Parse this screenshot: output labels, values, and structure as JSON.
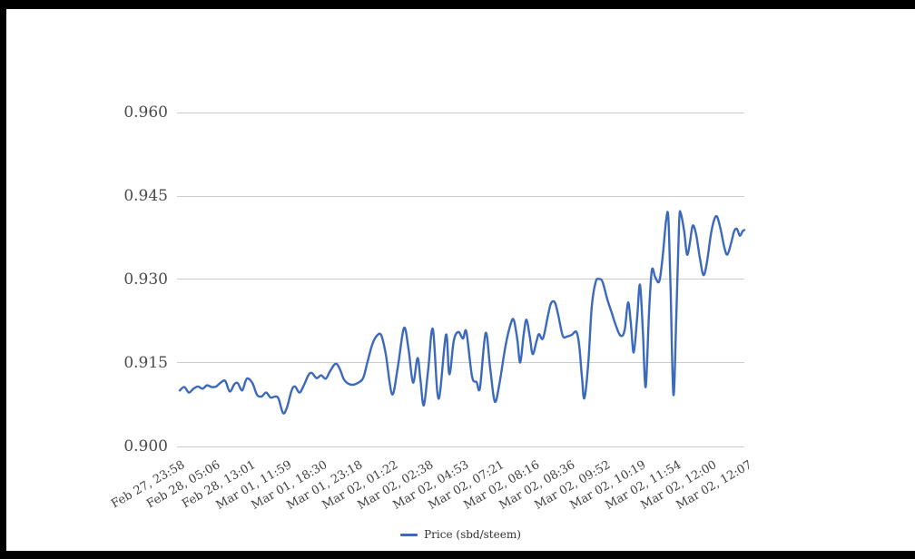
{
  "colors": {
    "frame": "#000000",
    "background": "#ffffff",
    "line": "#3b69bc",
    "grid": "#cccccc",
    "axis_text": "#4a4a4a",
    "legend_text": "#333333"
  },
  "legend": {
    "label": "Price (sbd/steem)"
  },
  "chart_data": {
    "type": "line",
    "title": "",
    "legend_position": "bottom",
    "grid": true,
    "y_axis": {
      "tick_labels": [
        "0.960",
        "0.945",
        "0.930",
        "0.915",
        "0.900"
      ],
      "range": [
        0.9,
        0.96
      ]
    },
    "x_ticks": [
      "Feb 27, 23:58",
      "Feb 28, 05:06",
      "Feb 28, 13:01",
      "Mar 01, 11:59",
      "Mar 01, 18:30",
      "Mar 01, 23:18",
      "Mar 02, 01:22",
      "Mar 02, 02:38",
      "Mar 02, 04:53",
      "Mar 02, 07:21",
      "Mar 02, 08:16",
      "Mar 02, 08:36",
      "Mar 02, 09:52",
      "Mar 02, 10:19",
      "Mar 02, 11:54",
      "Mar 02, 12:00",
      "Mar 02, 12:07"
    ],
    "points_format": "each point is [x_fraction_across_axis, price_sbd_per_steem]",
    "series": [
      {
        "name": "Price (sbd/steem)",
        "color": "#3b69bc",
        "points": [
          [
            0.005,
            0.91
          ],
          [
            0.013,
            0.9106
          ],
          [
            0.021,
            0.9096
          ],
          [
            0.029,
            0.9103
          ],
          [
            0.037,
            0.9107
          ],
          [
            0.045,
            0.9103
          ],
          [
            0.053,
            0.9109
          ],
          [
            0.061,
            0.9106
          ],
          [
            0.069,
            0.9107
          ],
          [
            0.077,
            0.9114
          ],
          [
            0.085,
            0.9117
          ],
          [
            0.093,
            0.9098
          ],
          [
            0.101,
            0.9111
          ],
          [
            0.107,
            0.9113
          ],
          [
            0.115,
            0.91
          ],
          [
            0.123,
            0.9121
          ],
          [
            0.133,
            0.9113
          ],
          [
            0.141,
            0.9092
          ],
          [
            0.149,
            0.9089
          ],
          [
            0.157,
            0.9096
          ],
          [
            0.165,
            0.9087
          ],
          [
            0.173,
            0.9089
          ],
          [
            0.179,
            0.9085
          ],
          [
            0.187,
            0.9059
          ],
          [
            0.194,
            0.907
          ],
          [
            0.202,
            0.91
          ],
          [
            0.208,
            0.9107
          ],
          [
            0.216,
            0.9096
          ],
          [
            0.224,
            0.911
          ],
          [
            0.232,
            0.9128
          ],
          [
            0.238,
            0.9131
          ],
          [
            0.246,
            0.9122
          ],
          [
            0.254,
            0.9127
          ],
          [
            0.262,
            0.9121
          ],
          [
            0.269,
            0.9133
          ],
          [
            0.277,
            0.9146
          ],
          [
            0.282,
            0.9147
          ],
          [
            0.288,
            0.9136
          ],
          [
            0.294,
            0.912
          ],
          [
            0.302,
            0.9112
          ],
          [
            0.31,
            0.911
          ],
          [
            0.318,
            0.9113
          ],
          [
            0.328,
            0.9122
          ],
          [
            0.336,
            0.9152
          ],
          [
            0.344,
            0.9182
          ],
          [
            0.352,
            0.9198
          ],
          [
            0.36,
            0.9199
          ],
          [
            0.368,
            0.9165
          ],
          [
            0.379,
            0.9093
          ],
          [
            0.389,
            0.914
          ],
          [
            0.4,
            0.9212
          ],
          [
            0.408,
            0.9175
          ],
          [
            0.416,
            0.9114
          ],
          [
            0.424,
            0.9158
          ],
          [
            0.429,
            0.912
          ],
          [
            0.435,
            0.9073
          ],
          [
            0.443,
            0.914
          ],
          [
            0.451,
            0.921
          ],
          [
            0.461,
            0.9085
          ],
          [
            0.474,
            0.92
          ],
          [
            0.48,
            0.9129
          ],
          [
            0.488,
            0.919
          ],
          [
            0.496,
            0.9205
          ],
          [
            0.504,
            0.9193
          ],
          [
            0.51,
            0.9205
          ],
          [
            0.52,
            0.9125
          ],
          [
            0.528,
            0.9115
          ],
          [
            0.534,
            0.9105
          ],
          [
            0.544,
            0.9203
          ],
          [
            0.552,
            0.914
          ],
          [
            0.56,
            0.908
          ],
          [
            0.568,
            0.911
          ],
          [
            0.579,
            0.918
          ],
          [
            0.589,
            0.9222
          ],
          [
            0.594,
            0.9225
          ],
          [
            0.6,
            0.919
          ],
          [
            0.605,
            0.915
          ],
          [
            0.611,
            0.92
          ],
          [
            0.616,
            0.9227
          ],
          [
            0.622,
            0.9195
          ],
          [
            0.627,
            0.9165
          ],
          [
            0.634,
            0.919
          ],
          [
            0.638,
            0.9201
          ],
          [
            0.645,
            0.9193
          ],
          [
            0.653,
            0.923
          ],
          [
            0.659,
            0.9256
          ],
          [
            0.666,
            0.9258
          ],
          [
            0.672,
            0.9235
          ],
          [
            0.68,
            0.9198
          ],
          [
            0.688,
            0.9197
          ],
          [
            0.696,
            0.92
          ],
          [
            0.704,
            0.9205
          ],
          [
            0.709,
            0.918
          ],
          [
            0.714,
            0.912
          ],
          [
            0.718,
            0.9086
          ],
          [
            0.725,
            0.915
          ],
          [
            0.731,
            0.925
          ],
          [
            0.738,
            0.9295
          ],
          [
            0.744,
            0.93
          ],
          [
            0.75,
            0.9295
          ],
          [
            0.758,
            0.9265
          ],
          [
            0.766,
            0.924
          ],
          [
            0.774,
            0.9215
          ],
          [
            0.782,
            0.9198
          ],
          [
            0.789,
            0.9208
          ],
          [
            0.795,
            0.9258
          ],
          [
            0.8,
            0.922
          ],
          [
            0.805,
            0.9168
          ],
          [
            0.811,
            0.923
          ],
          [
            0.816,
            0.929
          ],
          [
            0.821,
            0.921
          ],
          [
            0.826,
            0.9106
          ],
          [
            0.832,
            0.924
          ],
          [
            0.837,
            0.9316
          ],
          [
            0.843,
            0.9303
          ],
          [
            0.85,
            0.9296
          ],
          [
            0.856,
            0.934
          ],
          [
            0.862,
            0.9405
          ],
          [
            0.866,
            0.941
          ],
          [
            0.87,
            0.928
          ],
          [
            0.875,
            0.9092
          ],
          [
            0.88,
            0.923
          ],
          [
            0.885,
            0.94
          ],
          [
            0.888,
            0.9418
          ],
          [
            0.894,
            0.9385
          ],
          [
            0.899,
            0.9344
          ],
          [
            0.904,
            0.9365
          ],
          [
            0.909,
            0.9396
          ],
          [
            0.915,
            0.938
          ],
          [
            0.922,
            0.9335
          ],
          [
            0.928,
            0.9307
          ],
          [
            0.934,
            0.933
          ],
          [
            0.941,
            0.938
          ],
          [
            0.947,
            0.9407
          ],
          [
            0.952,
            0.9412
          ],
          [
            0.958,
            0.939
          ],
          [
            0.965,
            0.9356
          ],
          [
            0.97,
            0.9344
          ],
          [
            0.976,
            0.9362
          ],
          [
            0.982,
            0.9386
          ],
          [
            0.987,
            0.939
          ],
          [
            0.992,
            0.9378
          ],
          [
            0.997,
            0.9386
          ],
          [
            1.0,
            0.9388
          ]
        ]
      }
    ]
  }
}
